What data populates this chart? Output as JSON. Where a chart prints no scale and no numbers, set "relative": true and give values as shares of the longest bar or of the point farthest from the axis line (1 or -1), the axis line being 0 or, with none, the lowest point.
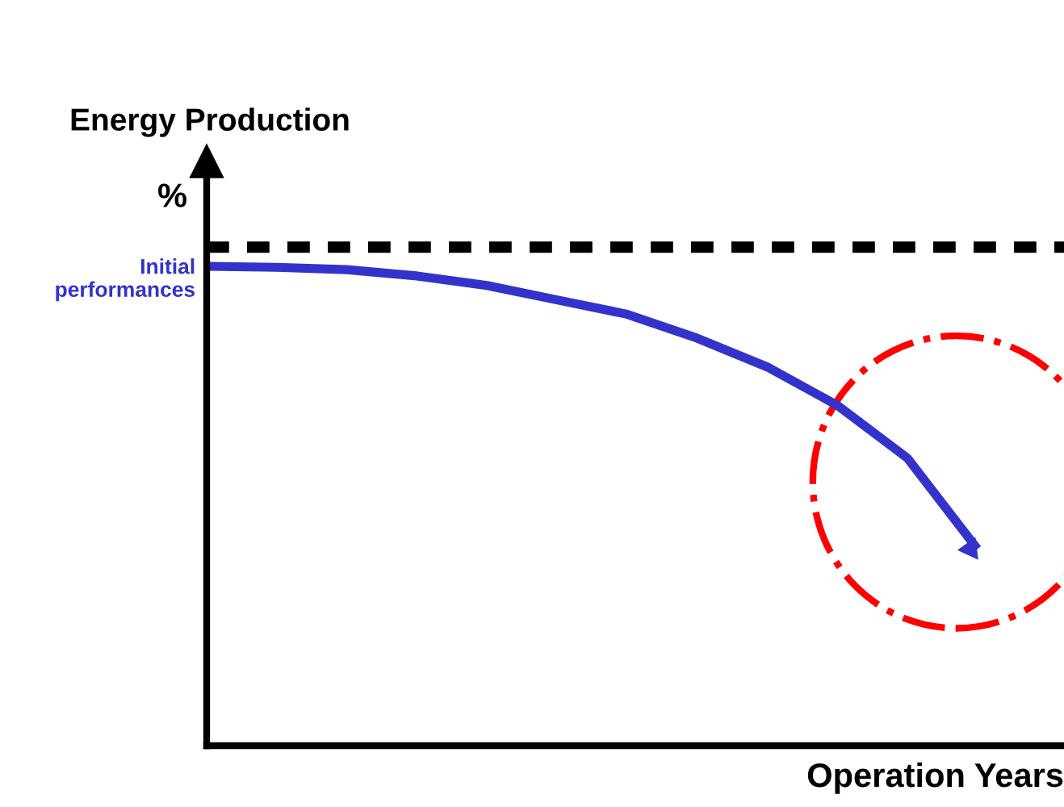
{
  "chart_data": {
    "type": "line",
    "title": "Energy Production",
    "ylabel": "%",
    "xlabel": "Operation Years",
    "relative": true,
    "categories": [
      null,
      null,
      null,
      null,
      null,
      null,
      null,
      null,
      null,
      null,
      null,
      null
    ],
    "series": [
      {
        "color": "#3333cc",
        "values": [
          1,
          0.998,
          0.993,
          0.98,
          0.96,
          0.93,
          0.9,
          0.85,
          0.79,
          0.71,
          0.6,
          0.41
        ]
      }
    ],
    "ref_lines": [
      {
        "axis": "y",
        "value": 1.04,
        "color": "#000000",
        "line_style": "dashed"
      }
    ],
    "annotations": [
      "Initial\nperformances"
    ],
    "grid": false,
    "legend": false,
    "marker": "none",
    "line_style": "solid"
  }
}
